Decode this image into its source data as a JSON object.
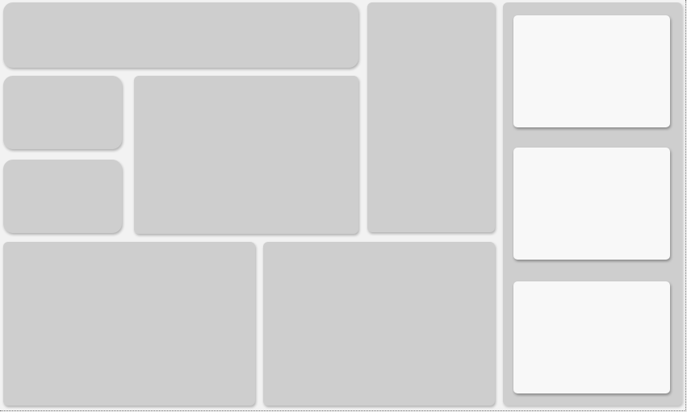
{
  "dashboard": {
    "tiles": [],
    "side_panel": {
      "cards": []
    }
  }
}
